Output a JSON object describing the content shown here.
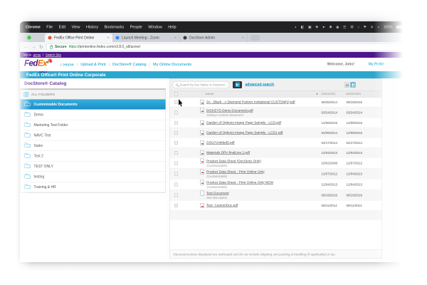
{
  "menu_bar": {
    "items": [
      "Chrome",
      "File",
      "Edit",
      "View",
      "History",
      "Bookmarks",
      "People",
      "Window",
      "Help"
    ],
    "tray_icons": [
      {
        "name": "do-not-disturb-icon",
        "glyph": "◐"
      },
      {
        "name": "display-icon",
        "glyph": "◧"
      },
      {
        "name": "camera-icon",
        "glyph": "▣"
      },
      {
        "name": "add-icon",
        "glyph": "✚"
      },
      {
        "name": "cursor-icon",
        "glyph": "➤"
      },
      {
        "name": "asterisk-icon",
        "glyph": "✱"
      },
      {
        "name": "record-icon",
        "glyph": "◉"
      },
      {
        "name": "menu-icon",
        "glyph": "☰"
      },
      {
        "name": "command-icon",
        "glyph": "⌘"
      },
      {
        "name": "music-icon",
        "glyph": "♪"
      },
      {
        "name": "flag-icon",
        "glyph": "⚑"
      },
      {
        "name": "wifi-icon",
        "glyph": "≋"
      },
      {
        "name": "volume-icon",
        "glyph": "◖"
      }
    ],
    "battery_label": "100%"
  },
  "browser_tabs": [
    {
      "label": "FedEx Office Print Online",
      "favicon_color": "#e05a2b",
      "active": true,
      "close": "×"
    },
    {
      "label": "Launch Meeting - Zoom",
      "favicon_color": "#2D8CFF",
      "active": false,
      "close": "×"
    },
    {
      "label": "DocStore Admin",
      "favicon_color": "#3a3a3a",
      "active": false,
      "close": "×"
    }
  ],
  "address_bar": {
    "secure_label": "Secure",
    "url_scheme": "https",
    "url_rest": "://printonline.fedex.com/v3.8.0_s8/acme/"
  },
  "account_bar": {
    "prefix": "My In",
    "account": "acme",
    "separator": "|",
    "switch_site": "Switch Site"
  },
  "brand": {
    "logo_fed": "Fed",
    "logo_ex": "Ex",
    "logo_sub": "Office",
    "burst": "✱"
  },
  "site_nav": {
    "home_icon": "⌂",
    "items": [
      "Home",
      "Upload & Print",
      "DocStore® Catalog",
      "My Online Documents"
    ],
    "welcome": "Welcome, John!",
    "profile": "My Profile"
  },
  "title_bar": "FedEx Office® Print Online Corporate",
  "sidebar": {
    "heading": "DocStore® Catalog",
    "all_folders": "ALL FOLDERS",
    "folders": [
      {
        "label": "Customizable Documents",
        "selected": true
      },
      {
        "label": "Demo",
        "selected": false
      },
      {
        "label": "Marketing Test Folder",
        "selected": false
      },
      {
        "label": "NAVC Test",
        "selected": false
      },
      {
        "label": "Sales",
        "selected": false
      },
      {
        "label": "Test 2",
        "selected": false
      },
      {
        "label": "TEST ONLY",
        "selected": false
      },
      {
        "label": "testing",
        "selected": false
      },
      {
        "label": "Training & HR",
        "selected": false
      }
    ]
  },
  "toolbar": {
    "search_placeholder": "Search by Doc Name or Keyword",
    "go_glyph": "▶",
    "advanced_search": "advanced search"
  },
  "table": {
    "headers": {
      "name": "NAME",
      "created": "CREATED",
      "modified": "MODIFIED"
    },
    "sort_indicator": "▲",
    "rows": [
      {
        "name": "3A - Black - A Diamond Partner Invitational CUSTOM[1].pdf",
        "sub": "",
        "created": "06/25/2014",
        "modified": "09/19/2016",
        "icon": "pdf-icon"
      },
      {
        "name": "DICKEYS Demo Document.pdf",
        "sub": "Dickeys Custom Document",
        "created": "03/24/2014",
        "modified": "03/24/2014",
        "icon": "pdf-icon"
      },
      {
        "name": "Garden of Options Image Page Sample - LCD.pdf",
        "sub": "",
        "created": "12/09/2015",
        "modified": "12/09/2015",
        "icon": "pdf-icon"
      },
      {
        "name": "Garden of Options Image Page Sample - LCD1.pdf",
        "sub": "",
        "created": "04/09/2014",
        "modified": "12/09/2015",
        "icon": "pdf-icon"
      },
      {
        "name": "GOLFUntitled5.pdf",
        "sub": "",
        "created": "04/17/2014",
        "modified": "04/17/2014",
        "icon": "pdf-icon"
      },
      {
        "name": "Materials DRA finalLive 2.pdf",
        "sub": "",
        "created": "12/04/2013",
        "modified": "12/04/2013",
        "icon": "pdf-icon"
      },
      {
        "name": "Product Data Sheet (DocStore Only)",
        "sub": "(Customizable)",
        "created": "10/02/2008",
        "modified": "12/07/2012",
        "icon": "pdf-icon"
      },
      {
        "name": "Product Data Sheet - Print Online Only",
        "sub": "(Customizable)",
        "created": "12/07/2012",
        "modified": "12/04/2013",
        "icon": "pdf-icon"
      },
      {
        "name": "Product Data Sheet - Print Online Only NEW",
        "sub": "(Customizable)",
        "created": "12/04/2013",
        "modified": "12/04/2013",
        "icon": "pdf-icon"
      },
      {
        "name": "Test Document",
        "sub": "test description",
        "created": "09/19/2016",
        "modified": "09/19/2016",
        "icon": "doc-icon"
      },
      {
        "name": "Test_CustomDoc.pdf",
        "sub": "",
        "created": "09/11/2014",
        "modified": "09/11/2014",
        "icon": "pdf-icon"
      }
    ]
  },
  "footer_note": "Document prices displayed are estimated and do not include shipping and packing & handling (if applicable) or tax."
}
